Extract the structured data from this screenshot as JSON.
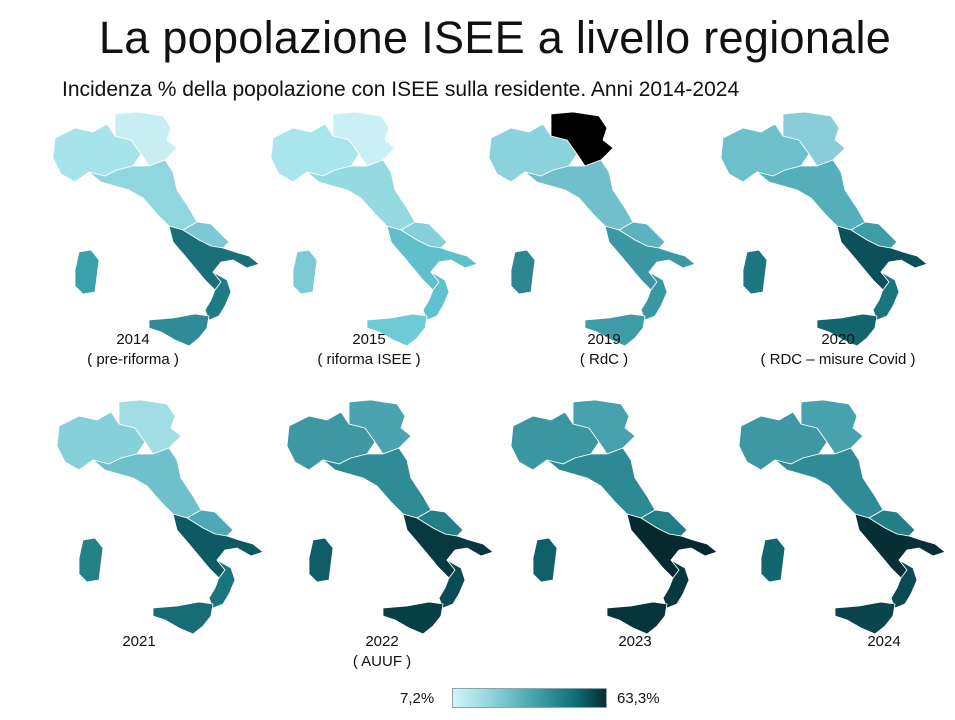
{
  "title": "La popolazione ISEE a livello regionale",
  "subtitle": "Incidenza % della popolazione con ISEE sulla residente. Anni 2014-2024",
  "legend": {
    "min_label": "7,2%",
    "max_label": "63,3%",
    "min_color": "#d2f4f7",
    "max_color": "#052d33"
  },
  "maps": [
    {
      "year": "2014",
      "note": "( pre-riforma )",
      "colors": {
        "north": "#a7e3ea",
        "northeast": "#c7eff3",
        "center": "#90d6df",
        "centersouth": "#7cc8d3",
        "south": "#1b6f78",
        "calabria": "#1f7b84",
        "sicily": "#2f8c96",
        "sardinia": "#3aa0ab"
      }
    },
    {
      "year": "2015",
      "note": "( riforma ISEE )",
      "colors": {
        "north": "#a9e5ec",
        "northeast": "#c9f1f5",
        "center": "#95d9e1",
        "centersouth": "#86d0da",
        "south": "#5fc0cc",
        "calabria": "#5fc3cf",
        "sicily": "#6ccbd6",
        "sardinia": "#7ccbd4"
      }
    },
    {
      "year": "2019",
      "note": "( RdC )",
      "colors": {
        "north": "#8ad2dc",
        "northeast": "#a4deе6",
        "center": "#6fc0cb",
        "centersouth": "#5bb3bf",
        "south": "#3b98a3",
        "calabria": "#3a98a3",
        "sicily": "#3d9ca7",
        "sardinia": "#2c8792"
      }
    },
    {
      "year": "2020",
      "note": "( RDC – misure Covid )",
      "colors": {
        "north": "#6dbfca",
        "northeast": "#88cdd7",
        "center": "#55afbb",
        "centersouth": "#3d9ca7",
        "south": "#0c5059",
        "calabria": "#1a747d",
        "sicily": "#13656e",
        "sardinia": "#1b7880"
      }
    },
    {
      "year": "2021",
      "note": "",
      "colors": {
        "north": "#86d0da",
        "northeast": "#a2dce5",
        "center": "#6ec0cb",
        "centersouth": "#4ea9b5",
        "south": "#0e5a63",
        "calabria": "#1a747d",
        "sicily": "#176c75",
        "sardinia": "#248089"
      }
    },
    {
      "year": "2022",
      "note": "( AUUF )",
      "colors": {
        "north": "#3d98a3",
        "northeast": "#4aa3ae",
        "center": "#2f8c97",
        "centersouth": "#237e88",
        "south": "#063940",
        "calabria": "#0b4b53",
        "sicily": "#073f46",
        "sardinia": "#0f5e67"
      }
    },
    {
      "year": "2023",
      "note": "",
      "colors": {
        "north": "#3a96a1",
        "northeast": "#46a1ac",
        "center": "#2d8a95",
        "centersouth": "#227c86",
        "south": "#042a30",
        "calabria": "#073840",
        "sicily": "#06343b",
        "sardinia": "#106069"
      }
    },
    {
      "year": "2024",
      "note": "",
      "colors": {
        "north": "#3d98a3",
        "northeast": "#48a2ad",
        "center": "#2f8c97",
        "centersouth": "#237e88",
        "south": "#062f36",
        "calabria": "#0b4a52",
        "sicily": "#0a454d",
        "sardinia": "#136670"
      }
    }
  ]
}
